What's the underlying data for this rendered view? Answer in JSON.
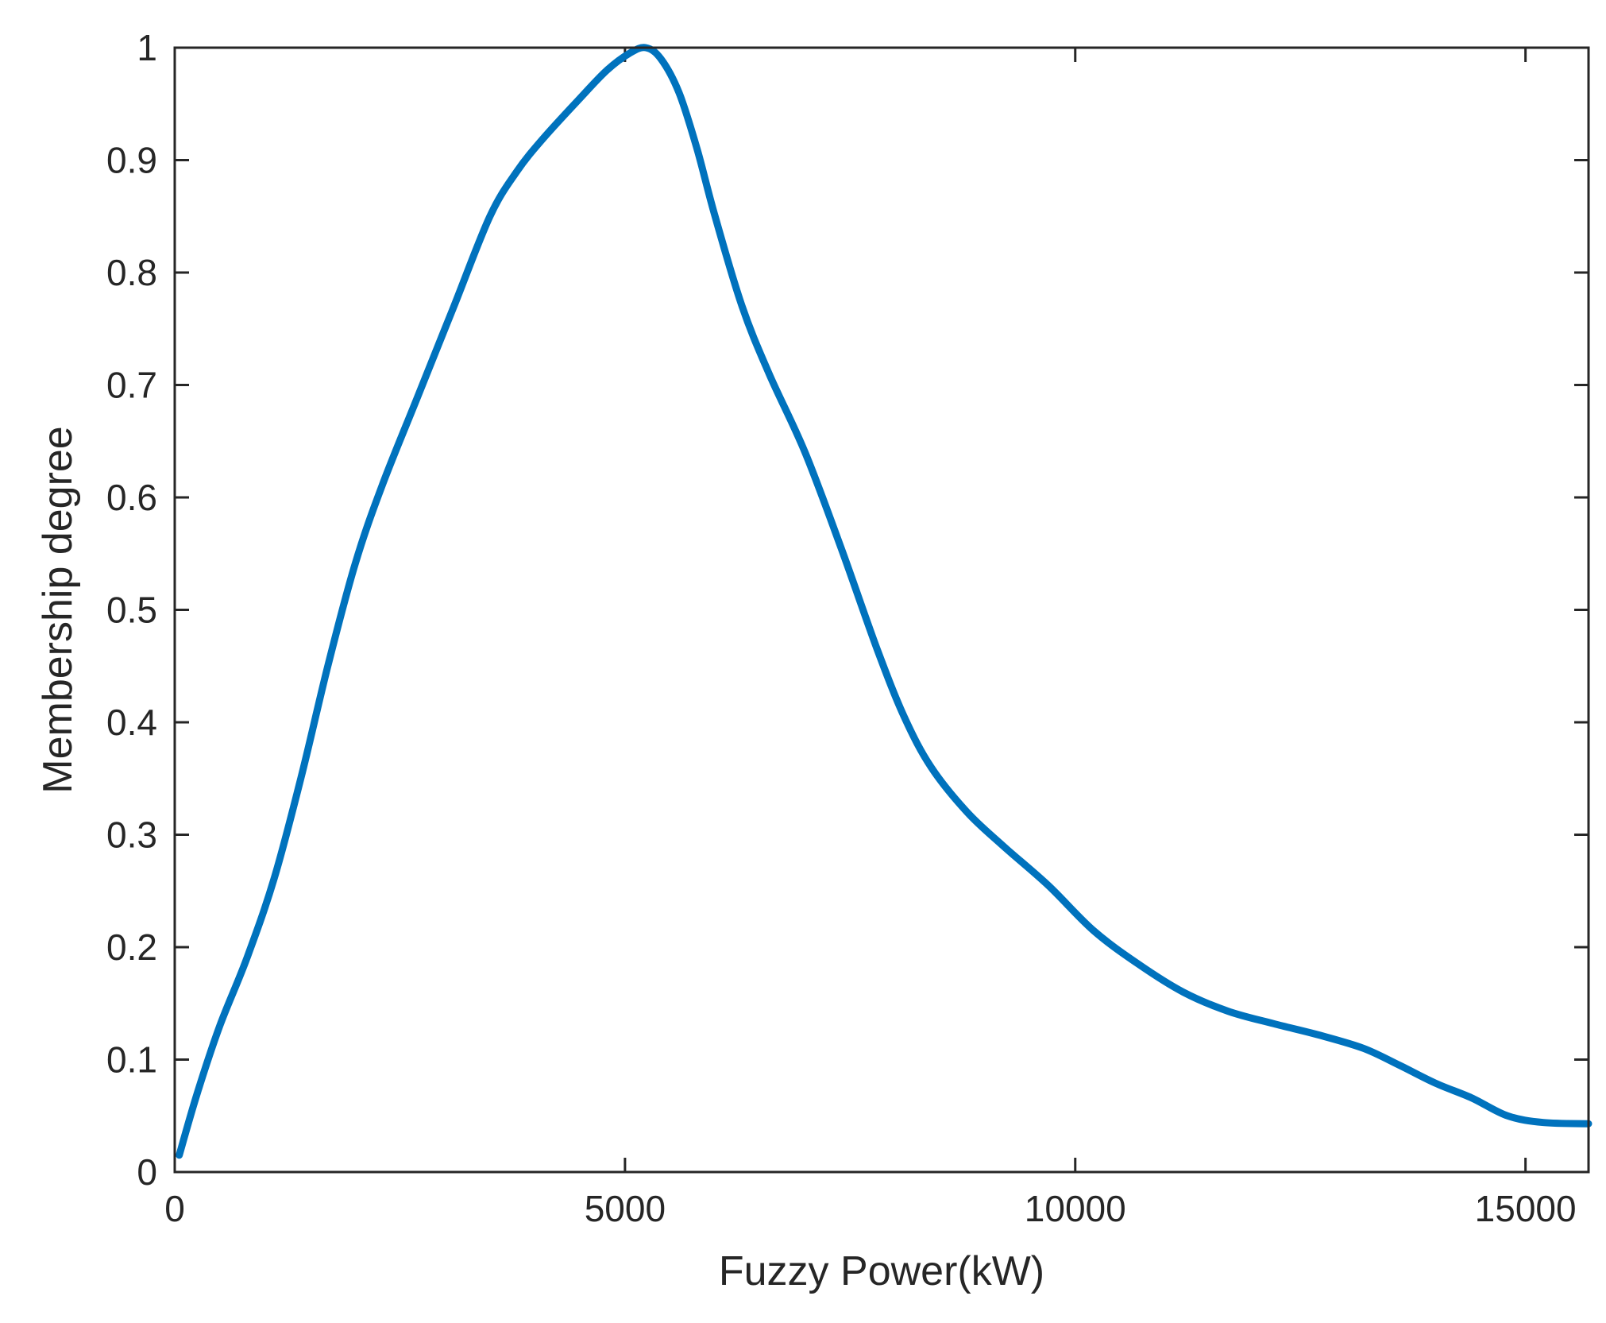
{
  "chart_data": {
    "type": "line",
    "title": "",
    "xlabel": "Fuzzy Power(kW)",
    "ylabel": "Membership degree",
    "xlim": [
      0,
      15700
    ],
    "ylim": [
      0,
      1
    ],
    "xticks": [
      0,
      5000,
      10000,
      15000
    ],
    "xtick_labels": [
      "0",
      "5000",
      "10000",
      "15000"
    ],
    "yticks": [
      0,
      0.1,
      0.2,
      0.3,
      0.4,
      0.5,
      0.6,
      0.7,
      0.8,
      0.9,
      1
    ],
    "ytick_labels": [
      "0",
      "0.1",
      "0.2",
      "0.3",
      "0.4",
      "0.5",
      "0.6",
      "0.7",
      "0.8",
      "0.9",
      "1"
    ],
    "grid": false,
    "box": true,
    "series": [
      {
        "color": "#0072BD",
        "x": [
          50,
          250,
          500,
          800,
          1100,
          1400,
          1700,
          2000,
          2300,
          2700,
          3100,
          3500,
          3800,
          4100,
          4500,
          4800,
          5050,
          5230,
          5400,
          5600,
          5800,
          6000,
          6300,
          6600,
          7000,
          7400,
          7800,
          8100,
          8400,
          8800,
          9200,
          9700,
          10200,
          10700,
          11200,
          11700,
          12200,
          12700,
          13200,
          13600,
          14000,
          14400,
          14800,
          15200,
          15700
        ],
        "y": [
          0.015,
          0.07,
          0.13,
          0.19,
          0.26,
          0.35,
          0.45,
          0.54,
          0.61,
          0.69,
          0.77,
          0.85,
          0.89,
          0.92,
          0.955,
          0.98,
          0.995,
          1.0,
          0.99,
          0.96,
          0.91,
          0.85,
          0.77,
          0.71,
          0.64,
          0.555,
          0.465,
          0.405,
          0.36,
          0.32,
          0.29,
          0.255,
          0.215,
          0.185,
          0.16,
          0.143,
          0.132,
          0.122,
          0.11,
          0.095,
          0.079,
          0.066,
          0.05,
          0.044,
          0.043
        ]
      }
    ]
  }
}
